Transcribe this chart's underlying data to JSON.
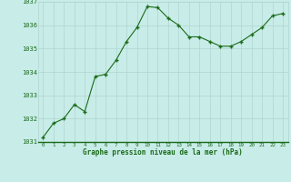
{
  "x": [
    0,
    1,
    2,
    3,
    4,
    5,
    6,
    7,
    8,
    9,
    10,
    11,
    12,
    13,
    14,
    15,
    16,
    17,
    18,
    19,
    20,
    21,
    22,
    23
  ],
  "y": [
    1031.2,
    1031.8,
    1032.0,
    1032.6,
    1032.3,
    1033.8,
    1033.9,
    1034.5,
    1035.3,
    1035.9,
    1036.8,
    1036.75,
    1036.3,
    1036.0,
    1035.5,
    1035.5,
    1035.3,
    1035.1,
    1035.1,
    1035.3,
    1035.6,
    1035.9,
    1036.4,
    1036.5
  ],
  "ylim": [
    1031,
    1037
  ],
  "yticks": [
    1031,
    1032,
    1033,
    1034,
    1035,
    1036,
    1037
  ],
  "xticks": [
    0,
    1,
    2,
    3,
    4,
    5,
    6,
    7,
    8,
    9,
    10,
    11,
    12,
    13,
    14,
    15,
    16,
    17,
    18,
    19,
    20,
    21,
    22,
    23
  ],
  "line_color": "#1a6b1a",
  "marker_color": "#1a6b1a",
  "bg_color": "#c8ece8",
  "grid_color": "#b0d4d0",
  "xlabel": "Graphe pression niveau de la mer (hPa)",
  "xlabel_color": "#1a6b1a",
  "figsize": [
    3.2,
    2.0
  ],
  "dpi": 100
}
